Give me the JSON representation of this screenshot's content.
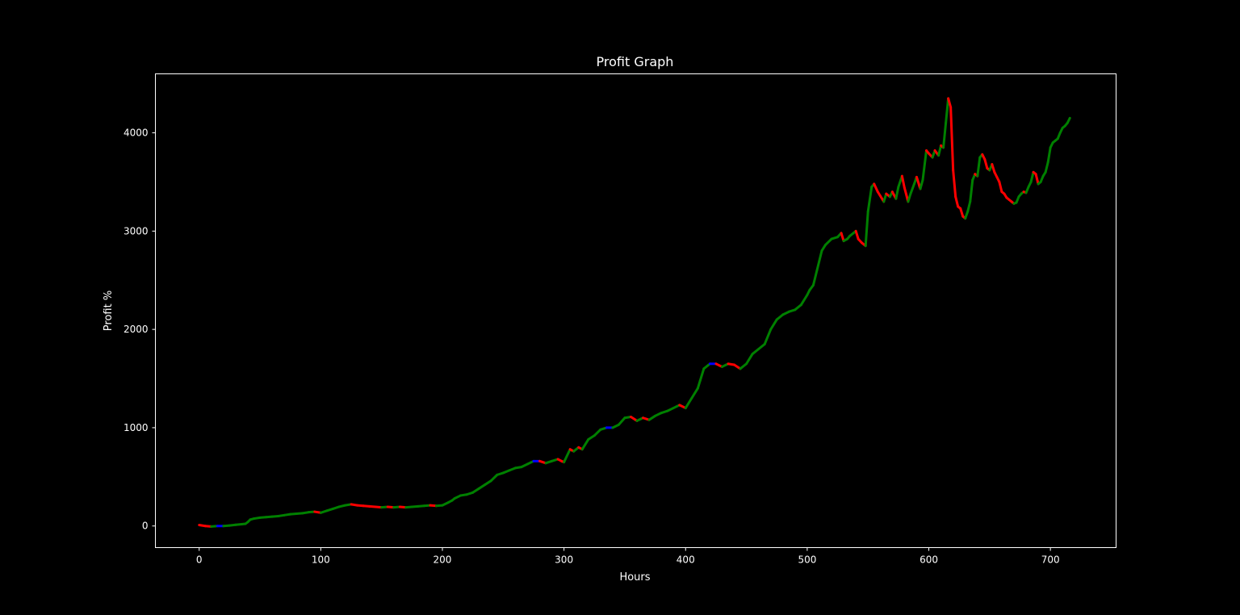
{
  "chart_data": {
    "type": "line",
    "title": "Profit Graph",
    "xlabel": "Hours",
    "ylabel": "Profit %",
    "xlim": [
      -36,
      754
    ],
    "ylim": [
      -220,
      4600
    ],
    "x_ticks": [
      0,
      100,
      200,
      300,
      400,
      500,
      600,
      700
    ],
    "y_ticks": [
      0,
      1000,
      2000,
      3000,
      4000
    ],
    "grid": false,
    "background": "#000000",
    "colors": {
      "up": "#008000",
      "down": "#ff0000",
      "flat": "#0000ff",
      "axis": "#ffffff"
    },
    "series": [
      {
        "x": [
          0,
          5,
          10,
          15,
          20,
          25,
          30,
          35,
          38,
          40,
          42,
          45,
          50,
          55,
          60,
          65,
          70,
          75,
          80,
          85,
          90,
          95,
          100,
          105,
          110,
          115,
          120,
          125,
          130,
          135,
          140,
          145,
          150,
          155,
          160,
          165,
          170,
          175,
          180,
          185,
          190,
          195,
          200,
          205,
          208,
          210,
          215,
          220,
          225,
          230,
          235,
          240,
          245,
          250,
          255,
          260,
          265,
          270,
          275,
          280,
          285,
          290,
          295,
          298,
          300,
          305,
          308,
          312,
          315,
          320,
          325,
          330,
          335,
          340,
          345,
          350,
          355,
          360,
          365,
          370,
          375,
          380,
          385,
          390,
          395,
          400,
          405,
          410,
          412,
          415,
          420,
          425,
          430,
          435,
          440,
          445,
          450,
          455,
          460,
          465,
          470,
          475,
          480,
          485,
          490,
          495,
          500,
          502,
          505,
          508,
          512,
          515,
          520,
          525,
          528,
          530,
          533,
          535,
          538,
          540,
          542,
          545,
          548,
          550,
          553,
          555,
          558,
          560,
          563,
          565,
          568,
          570,
          573,
          575,
          578,
          580,
          583,
          585,
          588,
          590,
          593,
          595,
          598,
          600,
          603,
          605,
          608,
          610,
          612,
          614,
          616,
          618,
          620,
          622,
          624,
          626,
          628,
          630,
          632,
          634,
          636,
          638,
          640,
          642,
          644,
          646,
          648,
          650,
          652,
          654,
          656,
          658,
          660,
          662,
          664,
          666,
          668,
          670,
          672,
          674,
          676,
          678,
          680,
          682,
          684,
          686,
          688,
          690,
          692,
          694,
          696,
          698,
          700,
          702,
          704,
          706,
          708,
          710,
          712,
          714,
          716
        ],
        "y": [
          10,
          0,
          -5,
          0,
          0,
          5,
          12,
          18,
          22,
          40,
          65,
          75,
          85,
          90,
          95,
          100,
          110,
          120,
          125,
          130,
          140,
          145,
          135,
          155,
          175,
          195,
          210,
          220,
          210,
          205,
          200,
          195,
          190,
          195,
          190,
          195,
          190,
          195,
          200,
          205,
          210,
          205,
          210,
          240,
          260,
          280,
          310,
          320,
          340,
          380,
          420,
          460,
          520,
          540,
          565,
          590,
          600,
          630,
          660,
          660,
          640,
          660,
          680,
          660,
          650,
          780,
          760,
          800,
          780,
          880,
          920,
          980,
          1000,
          1000,
          1030,
          1100,
          1110,
          1070,
          1100,
          1080,
          1120,
          1150,
          1170,
          1200,
          1230,
          1200,
          1300,
          1400,
          1480,
          1600,
          1650,
          1650,
          1620,
          1650,
          1640,
          1600,
          1650,
          1750,
          1800,
          1850,
          2000,
          2100,
          2150,
          2180,
          2200,
          2250,
          2350,
          2400,
          2450,
          2600,
          2800,
          2860,
          2920,
          2940,
          2980,
          2900,
          2920,
          2950,
          2980,
          3000,
          2920,
          2880,
          2850,
          3200,
          3450,
          3480,
          3400,
          3360,
          3300,
          3380,
          3350,
          3400,
          3330,
          3450,
          3560,
          3440,
          3300,
          3380,
          3480,
          3550,
          3430,
          3520,
          3820,
          3790,
          3750,
          3820,
          3770,
          3870,
          3850,
          4100,
          4350,
          4260,
          3620,
          3350,
          3250,
          3230,
          3150,
          3130,
          3200,
          3300,
          3520,
          3580,
          3560,
          3750,
          3780,
          3730,
          3640,
          3620,
          3680,
          3600,
          3550,
          3500,
          3400,
          3380,
          3340,
          3320,
          3300,
          3280,
          3290,
          3350,
          3380,
          3400,
          3390,
          3450,
          3500,
          3600,
          3580,
          3480,
          3500,
          3560,
          3600,
          3700,
          3850,
          3900,
          3920,
          3940,
          4000,
          4050,
          4070,
          4100,
          4150
        ]
      }
    ]
  }
}
